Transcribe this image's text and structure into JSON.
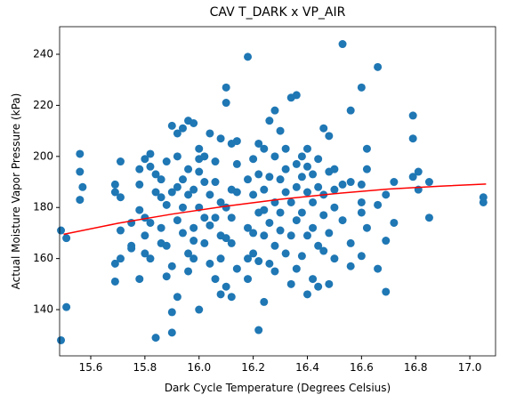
{
  "chart_data": {
    "type": "scatter",
    "title": "CAV T_DARK x VP_AIR",
    "xlabel": "Dark Cycle Temperature (Degrees Celsius)",
    "ylabel": "Actual Moisture Vapor Pressure (kPa)",
    "xlim": [
      15.485,
      17.095
    ],
    "ylim": [
      121.9,
      250.8
    ],
    "xticks": [
      15.6,
      15.8,
      {
        "value": 16,
        "label": "16.0"
      },
      16.2,
      16.4,
      16.6,
      16.8,
      {
        "value": 17,
        "label": "17.0"
      }
    ],
    "yticks": [
      140,
      160,
      180,
      200,
      220,
      240
    ],
    "series": [
      {
        "type": "scatter",
        "color": "#1f77b4",
        "x": [
          15.49,
          15.49,
          15.51,
          15.51,
          15.56,
          15.56,
          15.56,
          15.57,
          15.69,
          15.69,
          15.69,
          15.69,
          15.71,
          15.71,
          15.71,
          15.71,
          15.75,
          15.75,
          15.75,
          15.78,
          15.78,
          15.78,
          15.78,
          15.8,
          15.8,
          15.8,
          15.8,
          15.82,
          15.82,
          15.82,
          15.82,
          15.84,
          15.84,
          15.84,
          15.86,
          15.86,
          15.86,
          15.86,
          15.88,
          15.88,
          15.88,
          15.88,
          15.9,
          15.9,
          15.9,
          15.9,
          15.9,
          15.92,
          15.92,
          15.92,
          15.92,
          15.92,
          15.94,
          15.94,
          15.94,
          15.94,
          15.96,
          15.96,
          15.96,
          15.96,
          15.96,
          15.98,
          15.98,
          15.98,
          15.98,
          15.98,
          16,
          16,
          16,
          16,
          16,
          16.02,
          16.02,
          16.02,
          16.02,
          16.04,
          16.04,
          16.04,
          16.04,
          16.06,
          16.06,
          16.06,
          16.06,
          16.08,
          16.08,
          16.08,
          16.08,
          16.08,
          16.1,
          16.1,
          16.1,
          16.1,
          16.1,
          16.12,
          16.12,
          16.12,
          16.12,
          16.12,
          16.14,
          16.14,
          16.14,
          16.14,
          16.18,
          16.18,
          16.18,
          16.18,
          16.18,
          16.2,
          16.2,
          16.2,
          16.2,
          16.22,
          16.22,
          16.22,
          16.22,
          16.22,
          16.24,
          16.24,
          16.24,
          16.24,
          16.24,
          16.26,
          16.26,
          16.26,
          16.26,
          16.28,
          16.28,
          16.28,
          16.28,
          16.28,
          16.3,
          16.3,
          16.3,
          16.3,
          16.32,
          16.32,
          16.32,
          16.32,
          16.34,
          16.34,
          16.34,
          16.34,
          16.36,
          16.36,
          16.36,
          16.36,
          16.36,
          16.38,
          16.38,
          16.38,
          16.38,
          16.4,
          16.4,
          16.4,
          16.4,
          16.4,
          16.42,
          16.42,
          16.42,
          16.42,
          16.44,
          16.44,
          16.44,
          16.44,
          16.46,
          16.46,
          16.46,
          16.46,
          16.48,
          16.48,
          16.48,
          16.48,
          16.5,
          16.5,
          16.5,
          16.5,
          16.53,
          16.53,
          16.53,
          16.56,
          16.56,
          16.56,
          16.56,
          16.6,
          16.6,
          16.6,
          16.6,
          16.6,
          16.62,
          16.62,
          16.62,
          16.66,
          16.66,
          16.66,
          16.69,
          16.69,
          16.69,
          16.72,
          16.72,
          16.79,
          16.79,
          16.79,
          16.81,
          16.81,
          16.85,
          16.85,
          17.05,
          17.05
        ],
        "values": [
          128,
          171,
          141,
          168,
          183,
          194,
          201,
          188,
          151,
          158,
          186,
          189,
          198,
          171,
          184,
          160,
          164,
          174,
          165,
          179,
          189,
          152,
          195,
          199,
          162,
          169,
          176,
          160,
          174,
          196,
          201,
          129,
          193,
          186,
          166,
          172,
          184,
          191,
          153,
          165,
          181,
          198,
          139,
          131,
          157,
          186,
          212,
          145,
          175,
          188,
          209,
          200,
          170,
          191,
          211,
          180,
          162,
          155,
          214,
          185,
          195,
          167,
          172,
          187,
          213,
          160,
          199,
          203,
          194,
          180,
          140,
          166,
          176,
          200,
          190,
          158,
          185,
          209,
          173,
          152,
          176,
          198,
          190,
          146,
          160,
          169,
          207,
          182,
          149,
          227,
          221,
          180,
          168,
          145,
          166,
          176,
          187,
          205,
          156,
          186,
          197,
          206,
          239,
          160,
          172,
          191,
          152,
          162,
          185,
          199,
          170,
          132,
          178,
          193,
          205,
          159,
          143,
          169,
          179,
          203,
          187,
          214,
          158,
          192,
          174,
          218,
          165,
          182,
          200,
          155,
          171,
          191,
          210,
          178,
          162,
          186,
          203,
          195,
          150,
          169,
          223,
          182,
          224,
          156,
          197,
          188,
          175,
          161,
          178,
          192,
          200,
          146,
          169,
          186,
          203,
          196,
          152,
          172,
          182,
          193,
          149,
          165,
          199,
          188,
          163,
          177,
          211,
          185,
          150,
          170,
          194,
          208,
          160,
          180,
          187,
          195,
          244,
          175,
          189,
          157,
          166,
          218,
          190,
          227,
          161,
          182,
          178,
          189,
          172,
          203,
          195,
          235,
          156,
          181,
          147,
          167,
          185,
          174,
          190,
          216,
          207,
          192,
          187,
          194,
          176,
          190,
          182,
          184
        ]
      },
      {
        "type": "line",
        "color": "#ff0000",
        "x": [
          15.5,
          15.7,
          15.9,
          16.1,
          16.3,
          16.5,
          16.7,
          16.9,
          17.06
        ],
        "values": [
          169.5,
          173.8,
          177.4,
          180.5,
          183.2,
          185.4,
          187.2,
          188.4,
          189.2
        ]
      }
    ]
  }
}
